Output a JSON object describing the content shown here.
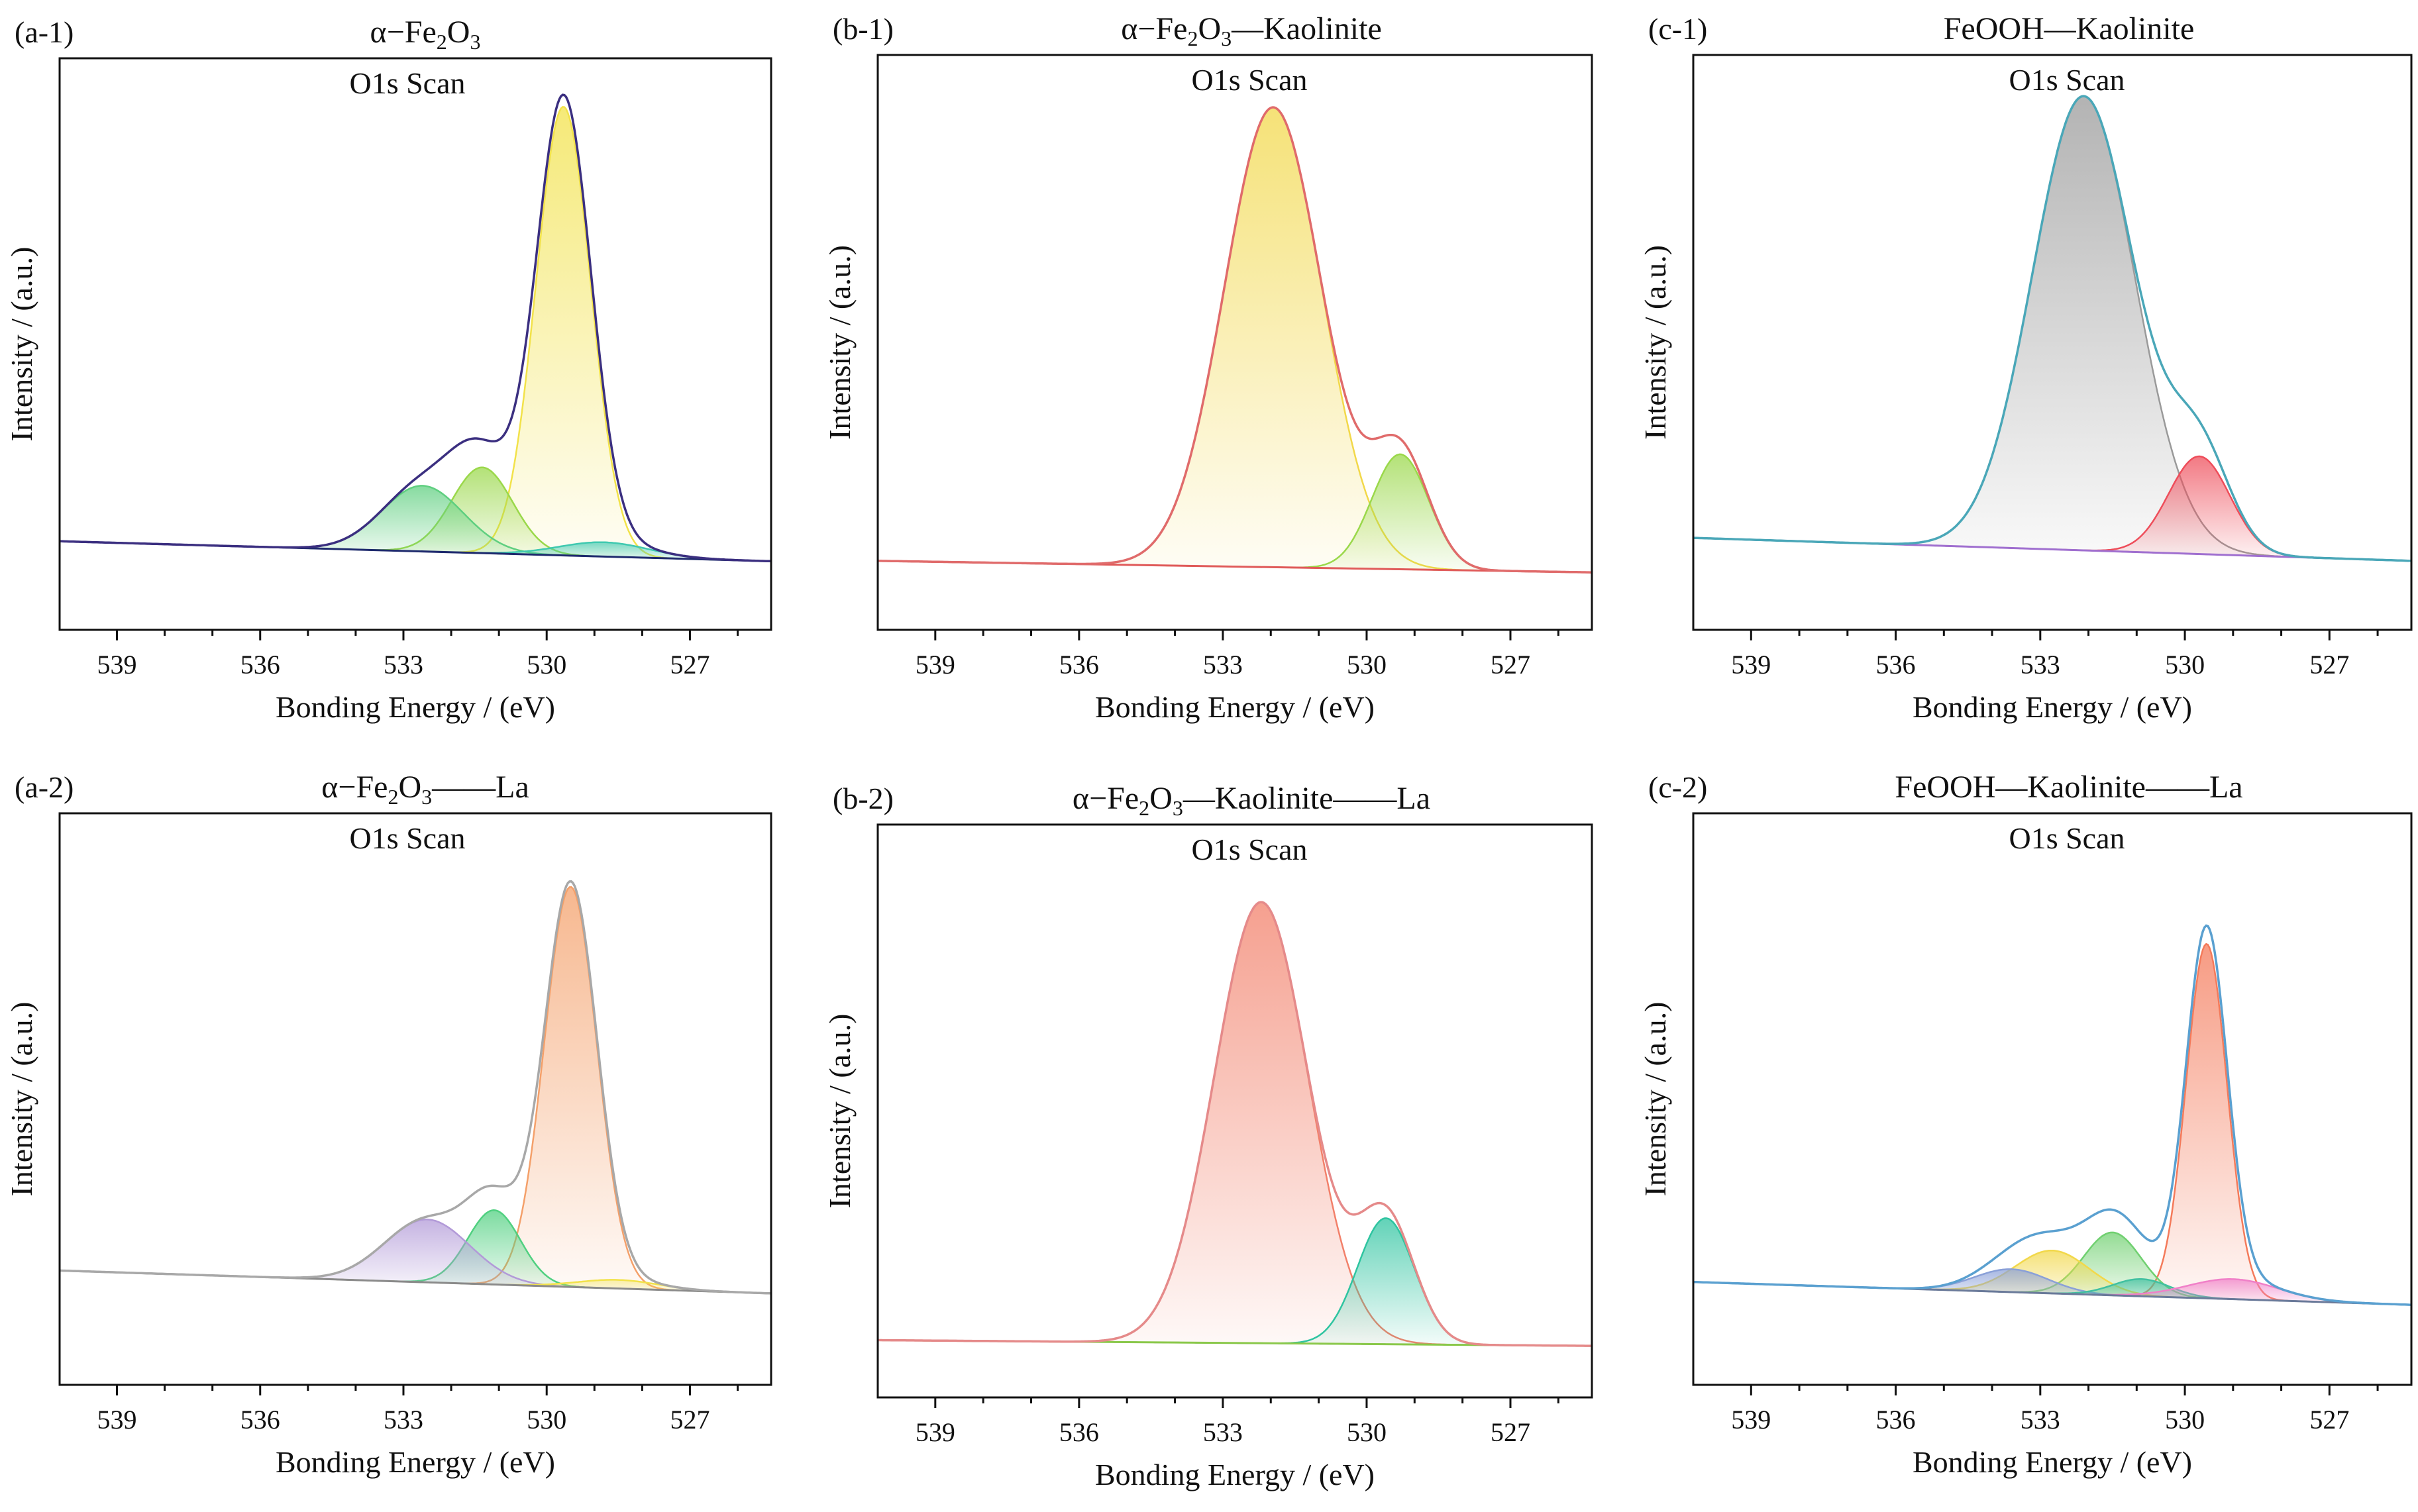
{
  "chart_data": [
    {
      "panel_label": "(a-1)",
      "title_parts": [
        {
          "t": "α−Fe"
        },
        {
          "t": "2",
          "sub": true
        },
        {
          "t": "O"
        },
        {
          "t": "3",
          "sub": true
        }
      ],
      "scan_label": "O1s Scan",
      "type": "area",
      "xlabel": "Bonding Energy / (eV)",
      "ylabel": "Intensity / (a.u.)",
      "xlim": [
        540.2,
        525.3
      ],
      "xticks": [
        "539",
        "536",
        "533",
        "530",
        "527"
      ],
      "baseline": {
        "left": 0.155,
        "right": 0.12
      },
      "peaks": [
        {
          "name": "peak-1",
          "center": 529.65,
          "height": 0.785,
          "fwhm": 1.35,
          "color": "#f2e24a"
        },
        {
          "name": "peak-2",
          "center": 531.35,
          "height": 0.15,
          "fwhm": 1.5,
          "color": "#9ad84a"
        },
        {
          "name": "peak-3",
          "center": 532.6,
          "height": 0.115,
          "fwhm": 2.0,
          "color": "#5fcf80"
        },
        {
          "name": "peak-4",
          "center": 528.8,
          "height": 0.025,
          "fwhm": 2.2,
          "color": "#40c9b0"
        }
      ],
      "envelope_color": "#3b2f80",
      "baseline_color": "#1f2a6e"
    },
    {
      "panel_label": "(b-1)",
      "title_parts": [
        {
          "t": "α−Fe"
        },
        {
          "t": "2",
          "sub": true
        },
        {
          "t": "O"
        },
        {
          "t": "3",
          "sub": true
        },
        {
          "t": "—Kaolinite"
        }
      ],
      "scan_label": "O1s Scan",
      "type": "area",
      "xlabel": "Bonding Energy / (eV)",
      "ylabel": "Intensity / (a.u.)",
      "xlim": [
        540.2,
        525.3
      ],
      "xticks": [
        "539",
        "536",
        "533",
        "530",
        "527"
      ],
      "baseline": {
        "left": 0.12,
        "right": 0.1
      },
      "peaks": [
        {
          "name": "peak-1",
          "center": 531.95,
          "height": 0.8,
          "fwhm": 2.4,
          "color": "#f2d84a"
        },
        {
          "name": "peak-2",
          "center": 529.3,
          "height": 0.2,
          "fwhm": 1.4,
          "color": "#9ad84a"
        }
      ],
      "envelope_color": "#e06b6b",
      "baseline_color": "#e05a5a"
    },
    {
      "panel_label": "(c-1)",
      "title_parts": [
        {
          "t": "FeOOH—Kaolinite"
        }
      ],
      "scan_label": "O1s Scan",
      "type": "area",
      "xlabel": "Bonding Energy / (eV)",
      "ylabel": "Intensity / (a.u.)",
      "xlim": [
        540.2,
        525.3
      ],
      "xticks": [
        "539",
        "536",
        "533",
        "530",
        "527"
      ],
      "baseline": {
        "left": 0.16,
        "right": 0.12
      },
      "peaks": [
        {
          "name": "peak-1",
          "center": 532.1,
          "height": 0.79,
          "fwhm": 2.5,
          "color": "#9a9a9a"
        },
        {
          "name": "peak-2",
          "center": 529.7,
          "height": 0.17,
          "fwhm": 1.5,
          "color": "#ee4d5a"
        }
      ],
      "envelope_color": "#4aa7b8",
      "baseline_color": "#a070d0"
    },
    {
      "panel_label": "(a-2)",
      "title_parts": [
        {
          "t": "α−Fe"
        },
        {
          "t": "2",
          "sub": true
        },
        {
          "t": "O"
        },
        {
          "t": "3",
          "sub": true
        },
        {
          "t": "——La"
        }
      ],
      "scan_label": "O1s Scan",
      "type": "area",
      "xlabel": "Bonding Energy / (eV)",
      "ylabel": "Intensity / (a.u.)",
      "xlim": [
        540.2,
        525.3
      ],
      "xticks": [
        "539",
        "536",
        "533",
        "530",
        "527"
      ],
      "baseline": {
        "left": 0.2,
        "right": 0.16
      },
      "peaks": [
        {
          "name": "peak-1",
          "center": 529.5,
          "height": 0.7,
          "fwhm": 1.3,
          "color": "#f4a06a"
        },
        {
          "name": "peak-2",
          "center": 531.1,
          "height": 0.13,
          "fwhm": 1.3,
          "color": "#50d080"
        },
        {
          "name": "peak-3",
          "center": 532.5,
          "height": 0.11,
          "fwhm": 2.1,
          "color": "#b29ad8"
        },
        {
          "name": "peak-4",
          "center": 528.5,
          "height": 0.015,
          "fwhm": 2.0,
          "color": "#f2e24a"
        }
      ],
      "envelope_color": "#a8a8a8",
      "baseline_color": "#8a8a8a"
    },
    {
      "panel_label": "(b-2)",
      "title_parts": [
        {
          "t": "α−Fe"
        },
        {
          "t": "2",
          "sub": true
        },
        {
          "t": "O"
        },
        {
          "t": "3",
          "sub": true
        },
        {
          "t": "—Kaolinite——La"
        }
      ],
      "scan_label": "O1s Scan",
      "type": "area",
      "xlabel": "Bonding Energy / (eV)",
      "ylabel": "Intensity / (a.u.)",
      "xlim": [
        540.2,
        525.3
      ],
      "xticks": [
        "539",
        "536",
        "533",
        "530",
        "527"
      ],
      "baseline": {
        "left": 0.1,
        "right": 0.09
      },
      "peaks": [
        {
          "name": "peak-1",
          "center": 532.2,
          "height": 0.77,
          "fwhm": 2.3,
          "color": "#f2806a"
        },
        {
          "name": "peak-2",
          "center": 529.6,
          "height": 0.22,
          "fwhm": 1.4,
          "color": "#2ec4a0"
        }
      ],
      "envelope_color": "#e58a8a",
      "baseline_color": "#8ac84a"
    },
    {
      "panel_label": "(c-2)",
      "title_parts": [
        {
          "t": "FeOOH—Kaolinite——La"
        }
      ],
      "scan_label": "O1s Scan",
      "type": "area",
      "xlabel": "Bonding Energy / (eV)",
      "ylabel": "Intensity / (a.u.)",
      "xlim": [
        540.2,
        525.3
      ],
      "xticks": [
        "539",
        "536",
        "533",
        "530",
        "527"
      ],
      "baseline": {
        "left": 0.18,
        "right": 0.14
      },
      "peaks": [
        {
          "name": "peak-1",
          "center": 529.55,
          "height": 0.62,
          "fwhm": 1.0,
          "color": "#f47a5a"
        },
        {
          "name": "peak-2",
          "center": 531.5,
          "height": 0.11,
          "fwhm": 1.4,
          "color": "#70d070"
        },
        {
          "name": "peak-3",
          "center": 532.75,
          "height": 0.075,
          "fwhm": 1.8,
          "color": "#f2d84a"
        },
        {
          "name": "peak-4",
          "center": 533.6,
          "height": 0.04,
          "fwhm": 1.8,
          "color": "#8aa0d8"
        },
        {
          "name": "peak-5",
          "center": 530.9,
          "height": 0.03,
          "fwhm": 1.4,
          "color": "#40c0a0"
        },
        {
          "name": "peak-6",
          "center": 529.0,
          "height": 0.035,
          "fwhm": 2.2,
          "color": "#f080c8"
        }
      ],
      "envelope_color": "#5aa0d0",
      "baseline_color": "#6a7a9a"
    }
  ]
}
